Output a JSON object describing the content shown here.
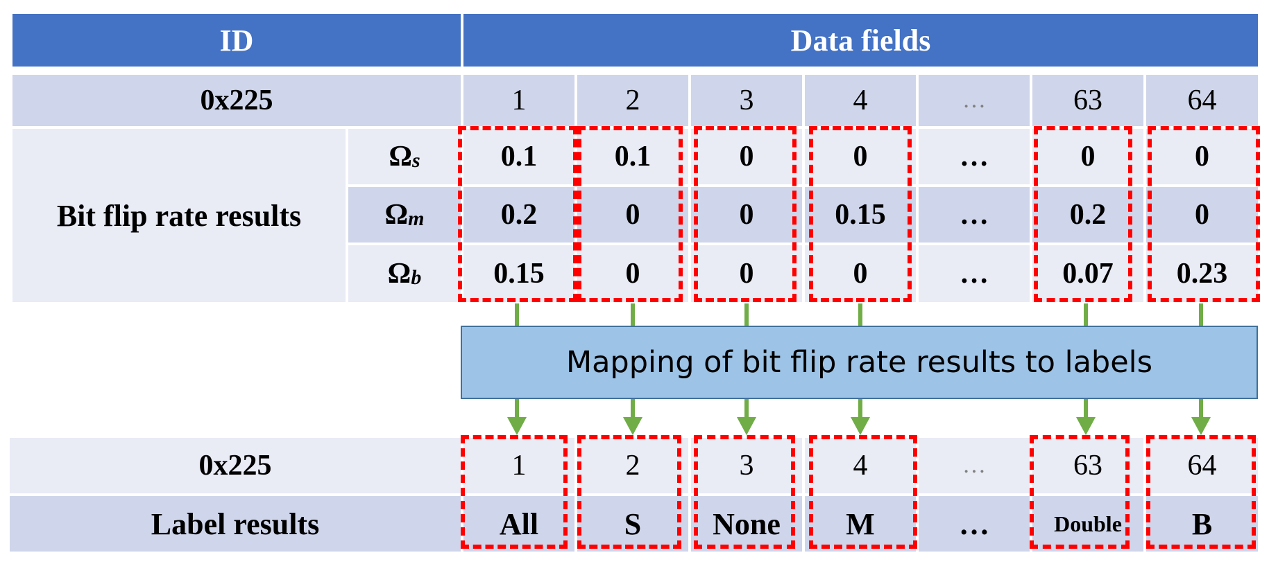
{
  "header": {
    "id_label": "ID",
    "data_fields_label": "Data fields"
  },
  "row_id": {
    "id": "0x225",
    "fields": [
      "1",
      "2",
      "3",
      "4",
      "…",
      "63",
      "64"
    ]
  },
  "bit_flip": {
    "label": "Bit flip rate results",
    "omega_symbol": "Ω",
    "rows": [
      {
        "sub": "s",
        "values": [
          "0.1",
          "0.1",
          "0",
          "0",
          "…",
          "0",
          "0"
        ]
      },
      {
        "sub": "m",
        "values": [
          "0.2",
          "0",
          "0",
          "0.15",
          "…",
          "0.2",
          "0"
        ]
      },
      {
        "sub": "b",
        "values": [
          "0.15",
          "0",
          "0",
          "0",
          "…",
          "0.07",
          "0.23"
        ]
      }
    ]
  },
  "mapping_label": "Mapping of bit flip rate results to labels",
  "bottom_id": {
    "id": "0x225",
    "fields": [
      "1",
      "2",
      "3",
      "4",
      "…",
      "63",
      "64"
    ]
  },
  "label_results": {
    "label": "Label results",
    "values": [
      "All",
      "S",
      "None",
      "M",
      "…",
      "Double",
      "B"
    ]
  },
  "colors": {
    "header": "#4472C4",
    "row_dark": "#CFD5EA",
    "row_light": "#E9EBF5",
    "highlight": "#FF0000",
    "arrow": "#70AD47",
    "mapping_box": "#9DC3E6"
  }
}
